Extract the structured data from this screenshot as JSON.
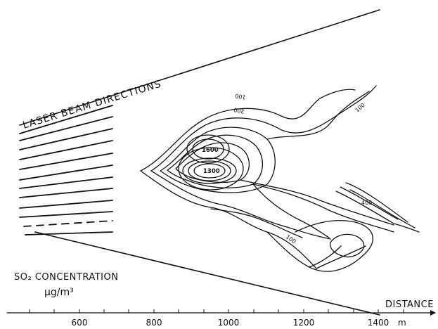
{
  "labels": {
    "laser_beam": "LASER BEAM DIRECTIONS",
    "concentration_title": "SO₂ CONCENTRATION",
    "concentration_unit": "µg/m³",
    "distance": "DISTANCE",
    "unit_m": "m"
  },
  "axis": {
    "ticks": [
      "600",
      "800",
      "1000",
      "1200",
      "1400"
    ]
  },
  "contour_labels": {
    "c100_top": "100",
    "c200_top": "200",
    "c100_right": "100",
    "c1600": "1600",
    "c1300": "1300",
    "c400": "400",
    "c100_bottom": "100"
  }
}
